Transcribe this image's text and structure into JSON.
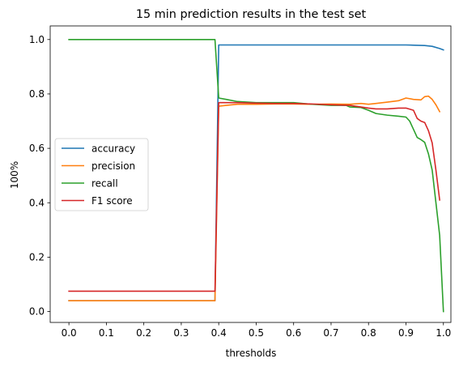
{
  "chart_data": {
    "type": "line",
    "title": "15 min prediction results in the test set",
    "xlabel": "thresholds",
    "ylabel": "100%",
    "xlim": [
      -0.05,
      1.02
    ],
    "ylim": [
      -0.04,
      1.05
    ],
    "xticks": [
      "0.0",
      "0.1",
      "0.2",
      "0.3",
      "0.4",
      "0.5",
      "0.6",
      "0.7",
      "0.8",
      "0.9",
      "1.0"
    ],
    "yticks": [
      "0.0",
      "0.2",
      "0.4",
      "0.6",
      "0.8",
      "1.0"
    ],
    "legend_position": "center-left",
    "grid": false,
    "series": [
      {
        "name": "accuracy",
        "color": "#1f77b4",
        "x": [
          0.0,
          0.39,
          0.4,
          0.45,
          0.5,
          0.6,
          0.7,
          0.8,
          0.9,
          0.95,
          0.97,
          0.99,
          1.0
        ],
        "y": [
          0.04,
          0.04,
          0.98,
          0.98,
          0.98,
          0.98,
          0.98,
          0.98,
          0.98,
          0.978,
          0.975,
          0.967,
          0.962
        ]
      },
      {
        "name": "precision",
        "color": "#ff7f0e",
        "x": [
          0.0,
          0.39,
          0.4,
          0.42,
          0.45,
          0.5,
          0.55,
          0.6,
          0.65,
          0.7,
          0.75,
          0.78,
          0.8,
          0.82,
          0.85,
          0.88,
          0.9,
          0.92,
          0.94,
          0.95,
          0.96,
          0.97,
          0.98,
          0.99
        ],
        "y": [
          0.04,
          0.04,
          0.755,
          0.758,
          0.762,
          0.762,
          0.763,
          0.763,
          0.762,
          0.763,
          0.762,
          0.765,
          0.762,
          0.765,
          0.77,
          0.775,
          0.785,
          0.78,
          0.778,
          0.79,
          0.792,
          0.78,
          0.76,
          0.735
        ]
      },
      {
        "name": "recall",
        "color": "#2ca02c",
        "x": [
          0.0,
          0.39,
          0.4,
          0.42,
          0.45,
          0.5,
          0.55,
          0.6,
          0.65,
          0.7,
          0.74,
          0.75,
          0.78,
          0.8,
          0.82,
          0.85,
          0.88,
          0.9,
          0.91,
          0.92,
          0.93,
          0.94,
          0.95,
          0.96,
          0.97,
          0.98,
          0.99,
          1.0
        ],
        "y": [
          1.0,
          1.0,
          0.785,
          0.78,
          0.772,
          0.768,
          0.768,
          0.768,
          0.762,
          0.758,
          0.758,
          0.752,
          0.75,
          0.74,
          0.728,
          0.722,
          0.718,
          0.715,
          0.7,
          0.67,
          0.64,
          0.632,
          0.622,
          0.58,
          0.52,
          0.4,
          0.28,
          0.0
        ]
      },
      {
        "name": "F1 score",
        "color": "#d62728",
        "x": [
          0.0,
          0.39,
          0.4,
          0.45,
          0.5,
          0.55,
          0.6,
          0.65,
          0.7,
          0.75,
          0.78,
          0.8,
          0.82,
          0.85,
          0.88,
          0.9,
          0.92,
          0.93,
          0.94,
          0.95,
          0.96,
          0.97,
          0.98,
          0.99
        ],
        "y": [
          0.075,
          0.075,
          0.768,
          0.768,
          0.766,
          0.765,
          0.765,
          0.763,
          0.76,
          0.758,
          0.752,
          0.748,
          0.745,
          0.745,
          0.748,
          0.748,
          0.74,
          0.71,
          0.7,
          0.695,
          0.665,
          0.62,
          0.52,
          0.41
        ]
      }
    ]
  }
}
